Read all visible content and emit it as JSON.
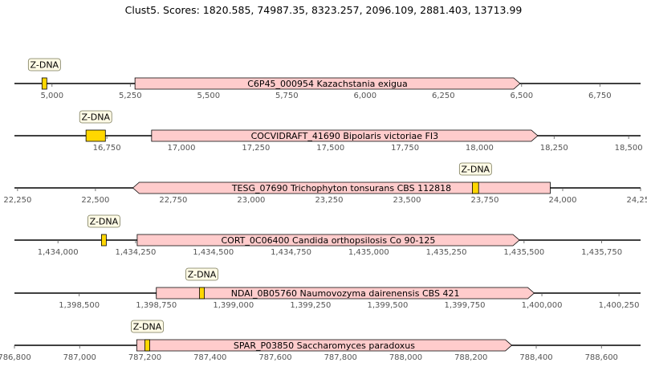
{
  "title": "Clust5. Scores: 1820.585, 74987.35, 8323.257, 2096.109, 2881.403, 13713.99",
  "colors": {
    "gene_fill": "#ffcccc",
    "motif_fill": "#ffd700",
    "axis": "#000000",
    "tick_text": "#555555"
  },
  "tracks": [
    {
      "xlim": [
        4880,
        6880
      ],
      "ticks": [
        5000,
        5250,
        5500,
        5750,
        6000,
        6250,
        6500,
        6750
      ],
      "tick_labels": [
        "5,000",
        "5,250",
        "5,500",
        "5,750",
        "6,000",
        "6,250",
        "6,500",
        "6,750"
      ],
      "gene": {
        "start": 5265,
        "end": 6495,
        "strand": "+",
        "label": "C6P45_000954 Kazachstania exigua"
      },
      "motifs": [
        {
          "start": 4968,
          "end": 4982,
          "label": "Z-DNA"
        }
      ]
    },
    {
      "xlim": [
        16440,
        18540
      ],
      "ticks": [
        16750,
        17000,
        17250,
        17500,
        17750,
        18000,
        18250,
        18500
      ],
      "tick_labels": [
        "16,750",
        "17,000",
        "17,250",
        "17,500",
        "17,750",
        "18,000",
        "18,250",
        "18,500"
      ],
      "gene": {
        "start": 16900,
        "end": 18195,
        "strand": "+",
        "label": "COCVIDRAFT_41690 Bipolaris victoriae FI3"
      },
      "motifs": [
        {
          "start": 16680,
          "end": 16745,
          "label": "Z-DNA"
        }
      ]
    },
    {
      "xlim": [
        22240,
        24250
      ],
      "ticks": [
        22250,
        22500,
        22750,
        23000,
        23250,
        23500,
        23750,
        24000,
        24250
      ],
      "tick_labels": [
        "22,250",
        "22,500",
        "22,750",
        "23,000",
        "23,250",
        "23,500",
        "23,750",
        "24,000",
        "24,250"
      ],
      "gene": {
        "start": 22620,
        "end": 23960,
        "strand": "-",
        "label": "TESG_07690 Trichophyton tonsurans CBS 112818"
      },
      "motifs": [
        {
          "start": 23710,
          "end": 23730,
          "label": "Z-DNA"
        }
      ]
    },
    {
      "xlim": [
        1433860,
        1435875
      ],
      "ticks": [
        1434000,
        1434250,
        1434500,
        1434750,
        1435000,
        1435250,
        1435500,
        1435750
      ],
      "tick_labels": [
        "1,434,000",
        "1,434,250",
        "1,434,500",
        "1,434,750",
        "1,435,000",
        "1,435,250",
        "1,435,500",
        "1,435,750"
      ],
      "gene": {
        "start": 1434255,
        "end": 1435485,
        "strand": "+",
        "label": "CORT_0C06400 Candida orthopsilosis Co 90-125"
      },
      "motifs": [
        {
          "start": 1434140,
          "end": 1434155,
          "label": "Z-DNA"
        }
      ]
    },
    {
      "xlim": [
        1398290,
        1400320
      ],
      "ticks": [
        1398500,
        1398750,
        1399000,
        1399250,
        1399500,
        1399750,
        1400000,
        1400250
      ],
      "tick_labels": [
        "1,398,500",
        "1,398,750",
        "1,399,000",
        "1,399,250",
        "1,399,500",
        "1,399,750",
        "1,400,000",
        "1,400,250"
      ],
      "gene": {
        "start": 1398750,
        "end": 1399975,
        "strand": "+",
        "label": "NDAI_0B05760 Naumovozyma dairenensis CBS 421"
      },
      "motifs": [
        {
          "start": 1398890,
          "end": 1398905,
          "label": "Z-DNA"
        }
      ]
    },
    {
      "xlim": [
        786800,
        788720
      ],
      "ticks": [
        786800,
        787000,
        787200,
        787400,
        787600,
        787800,
        788000,
        788200,
        788400,
        788600
      ],
      "tick_labels": [
        "786,800",
        "787,000",
        "787,200",
        "787,400",
        "787,600",
        "787,800",
        "788,000",
        "788,200",
        "788,400",
        "788,600"
      ],
      "gene": {
        "start": 787175,
        "end": 788325,
        "strand": "+",
        "label": "SPAR_P03850 Saccharomyces paradoxus"
      },
      "motifs": [
        {
          "start": 787200,
          "end": 787213,
          "label": "Z-DNA"
        }
      ]
    }
  ]
}
